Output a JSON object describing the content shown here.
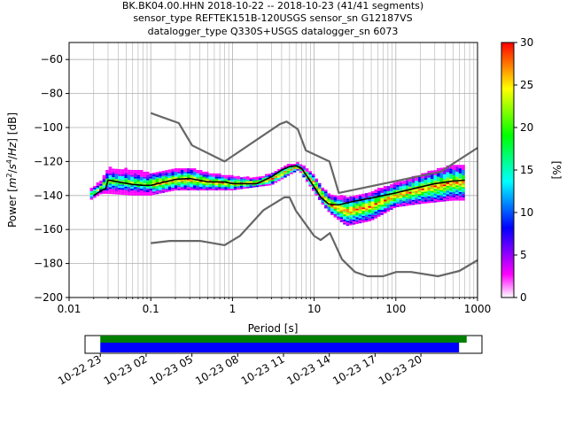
{
  "figure": {
    "title_lines": [
      "BK.BK04.00.HHN   2018-10-22 -- 2018-10-23  (41/41 segments)",
      "sensor_type REFTEK151B-120USGS sensor_sn G12187VS",
      "datalogger_type Q330S+USGS datalogger_sn 6073"
    ]
  },
  "chart_data": [
    {
      "type": "heatmap",
      "title": "BK.BK04.00.HHN   2018-10-22 -- 2018-10-23  (41/41 segments)",
      "xlabel": "Period [s]",
      "ylabel_parts": [
        "Power [",
        "m",
        "2",
        "/",
        "s",
        "4",
        "/",
        "Hz",
        "] [dB]"
      ],
      "x_scale": "log",
      "xlim": [
        0.01,
        1000
      ],
      "ylim": [
        -200,
        -50
      ],
      "x_ticks": [
        {
          "value": 0.01,
          "label": "0.01"
        },
        {
          "value": 0.1,
          "label": "0.1"
        },
        {
          "value": 1,
          "label": "1"
        },
        {
          "value": 10,
          "label": "10"
        },
        {
          "value": 100,
          "label": "100"
        },
        {
          "value": 1000,
          "label": "1000"
        }
      ],
      "y_ticks": [
        {
          "value": -60,
          "label": "−60"
        },
        {
          "value": -80,
          "label": "−80"
        },
        {
          "value": -100,
          "label": "−100"
        },
        {
          "value": -120,
          "label": "−120"
        },
        {
          "value": -140,
          "label": "−140"
        },
        {
          "value": -160,
          "label": "−160"
        },
        {
          "value": -180,
          "label": "−180"
        },
        {
          "value": -200,
          "label": "−200"
        }
      ],
      "grid": true,
      "colorbar": {
        "label": "[%]",
        "range": [
          0,
          30
        ],
        "ticks": [
          {
            "value": 0,
            "label": "0"
          },
          {
            "value": 5,
            "label": "5"
          },
          {
            "value": 10,
            "label": "10"
          },
          {
            "value": 15,
            "label": "15"
          },
          {
            "value": 20,
            "label": "20"
          },
          {
            "value": 25,
            "label": "25"
          },
          {
            "value": 30,
            "label": "30"
          }
        ],
        "colormap": [
          "#ffffff",
          "#ff00ff",
          "#8000ff",
          "#0000ff",
          "#0080ff",
          "#00ffff",
          "#00ff80",
          "#00ff00",
          "#80ff00",
          "#ffff00",
          "#ff8000",
          "#ff0000"
        ]
      },
      "high_noise_model": {
        "name": "NHNM",
        "period": [
          0.1,
          0.22,
          0.32,
          0.8,
          3.8,
          4.6,
          6.3,
          7.9,
          15.4,
          20,
          354.8,
          1000
        ],
        "power": [
          -91.5,
          -97.4,
          -110.5,
          -120,
          -98,
          -96.5,
          -101,
          -113.5,
          -120,
          -138.5,
          -126,
          -112
        ]
      },
      "low_noise_model": {
        "name": "NLNM",
        "period": [
          0.1,
          0.17,
          0.4,
          0.8,
          1.24,
          2.4,
          4.3,
          5,
          6,
          10,
          12,
          15.6,
          21.9,
          31.6,
          45,
          70,
          101,
          154,
          328,
          600,
          1000
        ],
        "power": [
          -168,
          -166.7,
          -166.7,
          -169.2,
          -163.7,
          -148.6,
          -141.1,
          -141.1,
          -149,
          -163.8,
          -166.2,
          -162.1,
          -177.5,
          -185,
          -187.5,
          -187.5,
          -185,
          -185,
          -187.5,
          -184.4,
          -178
        ]
      },
      "mode": {
        "name": "mode",
        "period": [
          0.02,
          0.025,
          0.028,
          0.03,
          0.04,
          0.06,
          0.08,
          0.1,
          0.15,
          0.2,
          0.3,
          0.5,
          0.8,
          1,
          2,
          3,
          4,
          5,
          6,
          7,
          8,
          10,
          12,
          15,
          20,
          30,
          50,
          70,
          100,
          200,
          300,
          500,
          700
        ],
        "power": [
          -140,
          -137,
          -136,
          -131,
          -132,
          -133.5,
          -134,
          -134,
          -132,
          -130.5,
          -130,
          -132,
          -132,
          -133,
          -133,
          -129,
          -125,
          -123,
          -122.5,
          -124,
          -128,
          -135,
          -141,
          -145,
          -145.5,
          -143.5,
          -141.5,
          -140,
          -138.5,
          -135,
          -133,
          -131.5,
          -131
        ]
      },
      "density_band": [
        {
          "p": 0.018,
          "top": -137,
          "bottom": -143
        },
        {
          "p": 0.025,
          "top": -131,
          "bottom": -139
        },
        {
          "p": 0.03,
          "top": -124,
          "bottom": -139
        },
        {
          "p": 0.06,
          "top": -125,
          "bottom": -140
        },
        {
          "p": 0.1,
          "top": -127,
          "bottom": -140
        },
        {
          "p": 0.2,
          "top": -125,
          "bottom": -137
        },
        {
          "p": 0.3,
          "top": -124,
          "bottom": -137
        },
        {
          "p": 0.5,
          "top": -127,
          "bottom": -137
        },
        {
          "p": 1,
          "top": -129,
          "bottom": -137
        },
        {
          "p": 2,
          "top": -130,
          "bottom": -135
        },
        {
          "p": 3,
          "top": -127,
          "bottom": -134
        },
        {
          "p": 5,
          "top": -122,
          "bottom": -128
        },
        {
          "p": 6.5,
          "top": -121,
          "bottom": -125
        },
        {
          "p": 10,
          "top": -128,
          "bottom": -138
        },
        {
          "p": 13,
          "top": -136,
          "bottom": -146
        },
        {
          "p": 16,
          "top": -140,
          "bottom": -151
        },
        {
          "p": 25,
          "top": -141,
          "bottom": -158
        },
        {
          "p": 50,
          "top": -138,
          "bottom": -155
        },
        {
          "p": 100,
          "top": -133,
          "bottom": -147
        },
        {
          "p": 200,
          "top": -128,
          "bottom": -145
        },
        {
          "p": 500,
          "top": -122,
          "bottom": -143
        },
        {
          "p": 700,
          "top": -123,
          "bottom": -143
        }
      ]
    },
    {
      "type": "timeline",
      "tick_labels": [
        "10-22 23",
        "10-23 02",
        "10-23 05",
        "10-23 08",
        "10-23 11",
        "10-23 14",
        "10-23 17",
        "10-23 20"
      ],
      "range": [
        "10-22 22:00",
        "10-24 00:00"
      ],
      "bars": [
        {
          "color": "#007f00",
          "start": "10-22 23:00",
          "end": "10-23 23:00"
        },
        {
          "color": "#0000ff",
          "start": "10-22 23:00",
          "end": "10-23 22:30"
        }
      ]
    }
  ]
}
